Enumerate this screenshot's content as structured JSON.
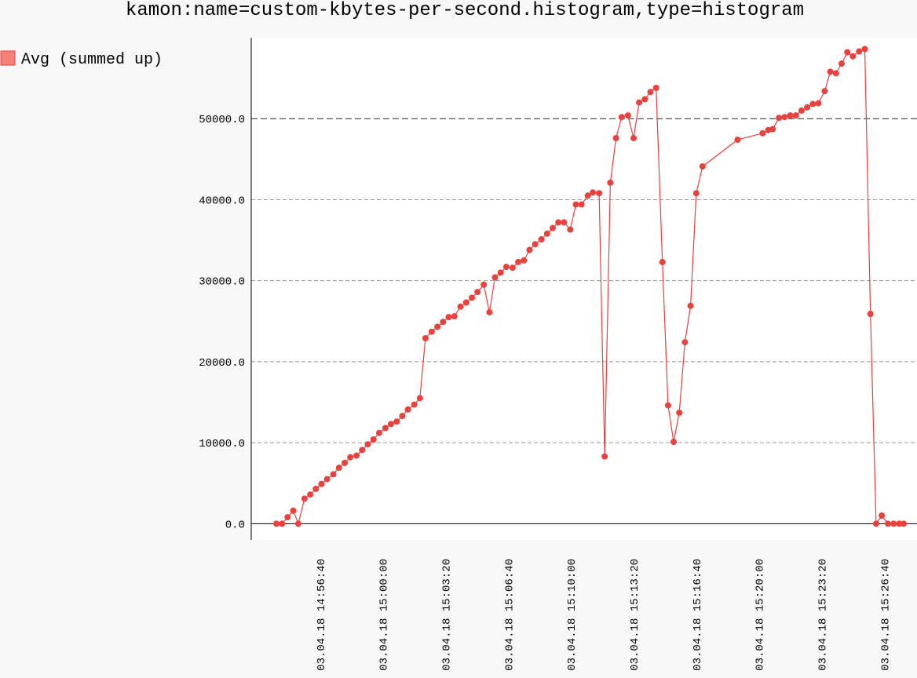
{
  "chart_data": {
    "type": "line",
    "title": "kamon:name=custom-kbytes-per-second.histogram,type=histogram",
    "xlabel": "",
    "ylabel": "",
    "legend_position": "top-left",
    "grid": true,
    "major_gridline_value": 50000,
    "ylim": [
      -2000,
      60000
    ],
    "xlim": [
      0,
      1021
    ],
    "yticks": [
      0,
      10000,
      20000,
      30000,
      40000,
      50000
    ],
    "ytick_labels": [
      "0.0",
      "10000.0",
      "20000.0",
      "30000.0",
      "40000.0",
      "50000.0"
    ],
    "xticks": [
      90,
      190,
      290,
      390,
      490,
      590,
      690,
      790,
      890,
      990
    ],
    "xtick_labels": [
      "03.04.18 14:56:40",
      "03.04.18 15:00:00",
      "03.04.18 15:03:20",
      "03.04.18 15:06:40",
      "03.04.18 15:10:00",
      "03.04.18 15:13:20",
      "03.04.18 15:16:40",
      "03.04.18 15:20:00",
      "03.04.18 15:23:20",
      "03.04.18 15:26:40"
    ],
    "series": [
      {
        "name": "Avg (summed up)",
        "color": "#e8413e",
        "legend_fill": "#f47f76",
        "x": [
          20,
          29,
          38,
          47,
          55,
          65,
          74,
          83,
          92,
          101,
          111,
          120,
          129,
          138,
          148,
          157,
          166,
          175,
          184,
          194,
          203,
          212,
          221,
          230,
          240,
          249,
          258,
          268,
          277,
          286,
          295,
          304,
          314,
          323,
          332,
          341,
          351,
          360,
          369,
          378,
          387,
          397,
          406,
          415,
          424,
          433,
          443,
          452,
          461,
          470,
          479,
          489,
          498,
          507,
          517,
          525,
          535,
          544,
          553,
          562,
          571,
          581,
          590,
          599,
          608,
          617,
          626,
          636,
          645,
          654,
          663,
          672,
          681,
          690,
          700,
          756,
          796,
          805,
          812,
          822,
          831,
          840,
          849,
          858,
          867,
          876,
          885,
          895,
          904,
          913,
          922,
          931,
          940,
          950,
          959,
          968,
          977,
          986,
          996,
          1005,
          1014,
          1021
        ],
        "y": [
          0,
          0,
          800,
          1600,
          0,
          3100,
          3600,
          4300,
          4900,
          5500,
          6100,
          6900,
          7500,
          8200,
          8400,
          9100,
          9800,
          10400,
          11200,
          11800,
          12300,
          12600,
          13300,
          14100,
          14700,
          15500,
          22900,
          23700,
          24300,
          24900,
          25500,
          25600,
          26800,
          27300,
          27900,
          28600,
          29500,
          26100,
          30400,
          31000,
          31700,
          31600,
          32300,
          32500,
          33800,
          34500,
          35100,
          35800,
          36500,
          37200,
          37200,
          36300,
          39400,
          39400,
          40500,
          40900,
          40800,
          8300,
          42100,
          47600,
          50200,
          50400,
          47600,
          52000,
          52400,
          53300,
          53800,
          32300,
          14600,
          10100,
          13700,
          22400,
          26900,
          40800,
          44100,
          47400,
          48200,
          48600,
          48700,
          50100,
          50200,
          50400,
          50400,
          51000,
          51400,
          51800,
          51900,
          53400,
          55800,
          55600,
          56800,
          58200,
          57700,
          58300,
          58600,
          25900,
          0,
          1000,
          0,
          0,
          0,
          0
        ]
      }
    ]
  }
}
